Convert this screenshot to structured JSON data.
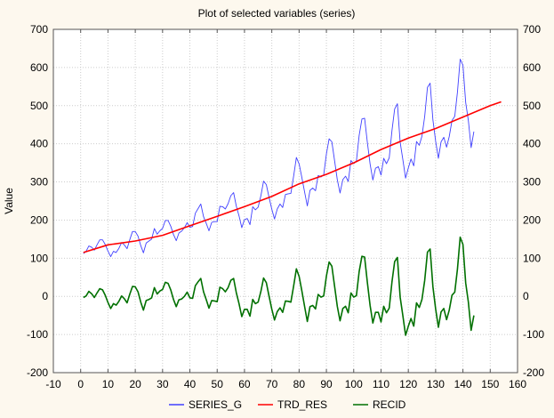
{
  "chart_data": {
    "type": "line",
    "title": "Plot of selected variables (series)",
    "xlabel": "",
    "ylabel": "Value",
    "xlim": [
      -10,
      160
    ],
    "ylim": [
      -200,
      700
    ],
    "xticks": [
      -10,
      0,
      10,
      20,
      30,
      40,
      50,
      60,
      70,
      80,
      90,
      100,
      110,
      120,
      130,
      140,
      150,
      160
    ],
    "yticks": [
      -200,
      -100,
      0,
      100,
      200,
      300,
      400,
      500,
      600,
      700
    ],
    "grid": true,
    "legend": "bottom",
    "series": [
      {
        "name": "SERIES_G",
        "color": "#4040ff",
        "x_start": 1,
        "values": [
          112,
          118,
          132,
          129,
          121,
          135,
          148,
          148,
          136,
          119,
          104,
          118,
          115,
          126,
          141,
          135,
          125,
          149,
          170,
          170,
          158,
          133,
          114,
          140,
          145,
          150,
          178,
          163,
          172,
          178,
          199,
          199,
          184,
          162,
          146,
          166,
          171,
          180,
          193,
          181,
          183,
          218,
          230,
          242,
          209,
          191,
          172,
          194,
          196,
          196,
          236,
          235,
          229,
          243,
          264,
          272,
          237,
          211,
          180,
          201,
          204,
          188,
          235,
          227,
          234,
          264,
          302,
          293,
          259,
          229,
          203,
          229,
          242,
          233,
          267,
          269,
          270,
          315,
          364,
          347,
          312,
          274,
          237,
          278,
          284,
          277,
          317,
          313,
          318,
          374,
          413,
          405,
          355,
          306,
          271,
          306,
          315,
          301,
          356,
          348,
          355,
          422,
          465,
          467,
          404,
          347,
          305,
          336,
          340,
          318,
          362,
          348,
          363,
          435,
          491,
          505,
          404,
          359,
          310,
          337,
          360,
          342,
          406,
          396,
          420,
          472,
          548,
          559,
          463,
          407,
          362,
          405,
          417,
          391,
          419,
          461,
          472,
          535,
          622,
          606,
          508,
          461,
          390,
          432
        ]
      },
      {
        "name": "TRD_RES",
        "color": "#ff0000",
        "x": [
          1,
          10,
          20,
          30,
          40,
          50,
          60,
          70,
          80,
          90,
          100,
          110,
          120,
          130,
          140,
          150,
          154
        ],
        "values": [
          115,
          135,
          145,
          160,
          185,
          210,
          235,
          262,
          295,
          320,
          350,
          385,
          415,
          440,
          470,
          500,
          510
        ]
      },
      {
        "name": "RECID",
        "color": "#007000",
        "x_start": 1,
        "values": [
          -3,
          1,
          13,
          7,
          -3,
          9,
          20,
          17,
          3,
          -16,
          -32,
          -19,
          -23,
          -13,
          1,
          -6,
          -17,
          6,
          26,
          25,
          12,
          -15,
          -36,
          -11,
          -8,
          -4,
          23,
          6,
          14,
          18,
          37,
          34,
          17,
          -8,
          -27,
          -9,
          -7,
          0,
          11,
          -4,
          -5,
          28,
          38,
          47,
          12,
          -9,
          -31,
          -11,
          -12,
          -14,
          24,
          20,
          12,
          23,
          42,
          47,
          10,
          -19,
          -53,
          -34,
          -34,
          -52,
          -8,
          -19,
          -15,
          13,
          48,
          36,
          0,
          -33,
          -62,
          -40,
          -30,
          -42,
          -12,
          -13,
          -15,
          27,
          72,
          52,
          15,
          -26,
          -66,
          -27,
          -24,
          -33,
          5,
          -2,
          1,
          54,
          90,
          79,
          26,
          -26,
          -64,
          -32,
          -26,
          -43,
          9,
          -2,
          2,
          65,
          105,
          103,
          37,
          -24,
          -70,
          -42,
          -42,
          -67,
          -26,
          -43,
          -31,
          38,
          91,
          102,
          -2,
          -50,
          -102,
          -78,
          -58,
          -78,
          -17,
          -29,
          -8,
          42,
          116,
          124,
          26,
          -33,
          -81,
          -41,
          -32,
          -61,
          -36,
          3,
          11,
          71,
          155,
          136,
          35,
          -15,
          -89,
          -50
        ]
      }
    ]
  }
}
